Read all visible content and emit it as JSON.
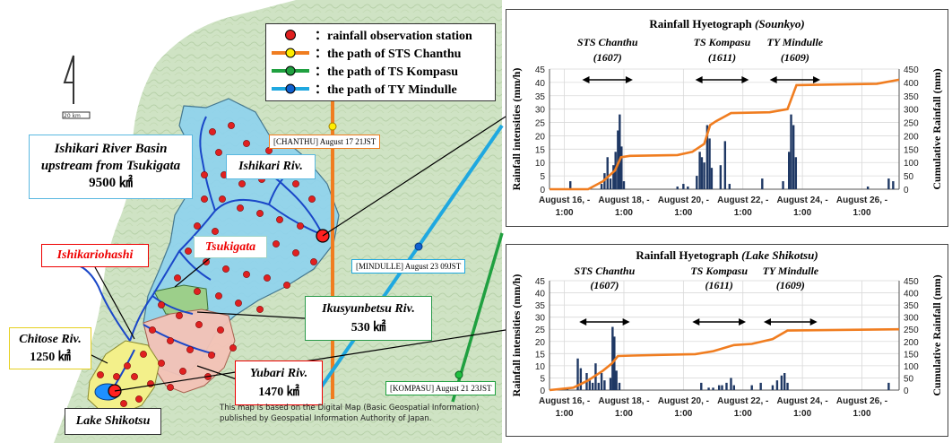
{
  "legend": {
    "items": [
      {
        "label": "：rainfall observation station",
        "kind": "station"
      },
      {
        "label": "：the path of STS Chanthu",
        "kind": "path",
        "color": "#f07d20",
        "marker": "#ffee00"
      },
      {
        "label": "：the path of TS Kompasu",
        "kind": "path",
        "color": "#20a040",
        "marker": "#20a040"
      },
      {
        "label": "：the path of TY Mindulle",
        "kind": "path",
        "color": "#1fa8e0",
        "marker": "#1060d0"
      }
    ]
  },
  "track_labels": {
    "chanthu": "[CHANTHU] August 17 21JST",
    "mindulle": "[MINDULLE] August 23 09JST",
    "kompasu": "[KOMPASU] August 21 23JST"
  },
  "map_labels": {
    "scale": "20 km",
    "basin": {
      "line1": "Ishikari River Basin",
      "line2": "upstream from Tsukigata",
      "area": "9500 ㎢"
    },
    "ishikari_riv": "Ishikari Riv.",
    "ishikariohashi": "Ishikariohashi",
    "tsukigata": "Tsukigata",
    "ikusyunbetsu": {
      "name": "Ikusyunbetsu Riv.",
      "area": "530 ㎢"
    },
    "chitose": {
      "name": "Chitose Riv.",
      "area": "1250 ㎢"
    },
    "yubari": {
      "name": "Yubari Riv.",
      "area": "1470 ㎢"
    },
    "lake": "Lake Shikotsu"
  },
  "credit": {
    "line1": "This map is based on the Digital  Map (Basic Geospatial Information)",
    "line2": "published by Geospatial Information Authority of Japan."
  },
  "colors": {
    "chanthu": "#f07d20",
    "kompasu": "#20a040",
    "mindulle": "#1fa8e0",
    "bars": "#1f3864",
    "cumulative": "#f07d20"
  },
  "chart_data": [
    {
      "type": "bar+line",
      "title": "Rainfall Hyetograph",
      "title_place": "(Sounkyo)",
      "ylabel": "Rainfall intensities (mm/h)",
      "y2label": "Cumulative Rainfall (mm)",
      "ylim": [
        0,
        45
      ],
      "y2lim": [
        0,
        450
      ],
      "yticks": [
        0,
        5,
        10,
        15,
        20,
        25,
        30,
        35,
        40,
        45
      ],
      "y2ticks": [
        0,
        50,
        100,
        150,
        200,
        250,
        300,
        350,
        400,
        450
      ],
      "xlim_days": [
        15.5,
        27.25
      ],
      "xtick_days": [
        16,
        18,
        20,
        22,
        24,
        26
      ],
      "xtick_labels": [
        "August 16, -",
        "August 18, -",
        "August 20, -",
        "August 22, -",
        "August 24, -",
        "August 26, -"
      ],
      "xtick_sub": "1:00",
      "events": [
        {
          "name": "STS Chanthu",
          "code": "(1607)",
          "start": 16.6,
          "end": 18.3
        },
        {
          "name": "TS Kompasu",
          "code": "(1611)",
          "start": 20.4,
          "end": 22.2
        },
        {
          "name": "TY Mindulle",
          "code": "(1609)",
          "start": 22.9,
          "end": 24.6
        }
      ],
      "bars": [
        {
          "t": 16.2,
          "v": 3
        },
        {
          "t": 17.25,
          "v": 2
        },
        {
          "t": 17.35,
          "v": 6
        },
        {
          "t": 17.45,
          "v": 12
        },
        {
          "t": 17.55,
          "v": 4
        },
        {
          "t": 17.65,
          "v": 9
        },
        {
          "t": 17.72,
          "v": 14
        },
        {
          "t": 17.8,
          "v": 22
        },
        {
          "t": 17.86,
          "v": 28
        },
        {
          "t": 17.92,
          "v": 16
        },
        {
          "t": 18.0,
          "v": 3
        },
        {
          "t": 19.8,
          "v": 1
        },
        {
          "t": 20.0,
          "v": 2
        },
        {
          "t": 20.15,
          "v": 1
        },
        {
          "t": 20.45,
          "v": 5
        },
        {
          "t": 20.55,
          "v": 14
        },
        {
          "t": 20.62,
          "v": 12
        },
        {
          "t": 20.7,
          "v": 10
        },
        {
          "t": 20.8,
          "v": 24
        },
        {
          "t": 20.88,
          "v": 19
        },
        {
          "t": 20.95,
          "v": 8
        },
        {
          "t": 21.25,
          "v": 9
        },
        {
          "t": 21.4,
          "v": 18
        },
        {
          "t": 21.55,
          "v": 2
        },
        {
          "t": 22.65,
          "v": 4
        },
        {
          "t": 23.35,
          "v": 3
        },
        {
          "t": 23.55,
          "v": 14
        },
        {
          "t": 23.62,
          "v": 28
        },
        {
          "t": 23.7,
          "v": 24
        },
        {
          "t": 23.78,
          "v": 12
        },
        {
          "t": 26.2,
          "v": 1
        },
        {
          "t": 26.9,
          "v": 4
        },
        {
          "t": 27.05,
          "v": 3
        }
      ],
      "cumulative": [
        [
          15.5,
          0
        ],
        [
          16.8,
          0
        ],
        [
          17.3,
          30
        ],
        [
          17.7,
          70
        ],
        [
          17.9,
          120
        ],
        [
          18.2,
          125
        ],
        [
          19.8,
          128
        ],
        [
          20.3,
          140
        ],
        [
          20.7,
          170
        ],
        [
          20.9,
          240
        ],
        [
          21.1,
          255
        ],
        [
          21.6,
          285
        ],
        [
          22.9,
          288
        ],
        [
          23.5,
          300
        ],
        [
          23.8,
          390
        ],
        [
          26.5,
          395
        ],
        [
          27.25,
          410
        ]
      ]
    },
    {
      "type": "bar+line",
      "title": "Rainfall Hyetograph",
      "title_place": "(Lake Shikotsu)",
      "ylabel": "Rainfall intensities (mm/h)",
      "y2label": "Cumulative Rainfall (mm)",
      "ylim": [
        0,
        45
      ],
      "y2lim": [
        0,
        450
      ],
      "yticks": [
        0,
        5,
        10,
        15,
        20,
        25,
        30,
        35,
        40,
        45
      ],
      "y2ticks": [
        0,
        50,
        100,
        150,
        200,
        250,
        300,
        350,
        400,
        450
      ],
      "xlim_days": [
        15.5,
        27.25
      ],
      "xtick_days": [
        16,
        18,
        20,
        22,
        24,
        26
      ],
      "xtick_labels": [
        "August 16, -",
        "August 18, -",
        "August 20, -",
        "August 22, -",
        "August 24, -",
        "August 26, -"
      ],
      "xtick_sub": "1:00",
      "events": [
        {
          "name": "STS Chanthu",
          "code": "(1607)",
          "start": 16.5,
          "end": 18.2
        },
        {
          "name": "TS Kompasu",
          "code": "(1611)",
          "start": 20.3,
          "end": 22.1
        },
        {
          "name": "TY Mindulle",
          "code": "(1609)",
          "start": 22.7,
          "end": 24.5
        }
      ],
      "bars": [
        {
          "t": 16.1,
          "v": 1
        },
        {
          "t": 16.45,
          "v": 13
        },
        {
          "t": 16.55,
          "v": 9
        },
        {
          "t": 16.75,
          "v": 7
        },
        {
          "t": 16.85,
          "v": 4
        },
        {
          "t": 16.95,
          "v": 3
        },
        {
          "t": 17.05,
          "v": 11
        },
        {
          "t": 17.15,
          "v": 3
        },
        {
          "t": 17.25,
          "v": 7
        },
        {
          "t": 17.35,
          "v": 4
        },
        {
          "t": 17.55,
          "v": 5
        },
        {
          "t": 17.62,
          "v": 26
        },
        {
          "t": 17.68,
          "v": 22
        },
        {
          "t": 17.75,
          "v": 8
        },
        {
          "t": 17.85,
          "v": 3
        },
        {
          "t": 20.6,
          "v": 3
        },
        {
          "t": 20.85,
          "v": 1
        },
        {
          "t": 21.0,
          "v": 1
        },
        {
          "t": 21.2,
          "v": 2
        },
        {
          "t": 21.3,
          "v": 2
        },
        {
          "t": 21.45,
          "v": 3
        },
        {
          "t": 21.6,
          "v": 5
        },
        {
          "t": 21.7,
          "v": 2
        },
        {
          "t": 22.3,
          "v": 2
        },
        {
          "t": 22.6,
          "v": 3
        },
        {
          "t": 23.0,
          "v": 2
        },
        {
          "t": 23.15,
          "v": 4
        },
        {
          "t": 23.3,
          "v": 6
        },
        {
          "t": 23.4,
          "v": 7
        },
        {
          "t": 23.5,
          "v": 3
        },
        {
          "t": 26.9,
          "v": 3
        }
      ],
      "cumulative": [
        [
          15.5,
          0
        ],
        [
          16.3,
          10
        ],
        [
          16.8,
          40
        ],
        [
          17.3,
          80
        ],
        [
          17.6,
          110
        ],
        [
          17.8,
          140
        ],
        [
          18.3,
          142
        ],
        [
          20.4,
          148
        ],
        [
          21.0,
          160
        ],
        [
          21.7,
          185
        ],
        [
          22.3,
          190
        ],
        [
          23.0,
          210
        ],
        [
          23.5,
          245
        ],
        [
          27.25,
          250
        ]
      ]
    }
  ]
}
